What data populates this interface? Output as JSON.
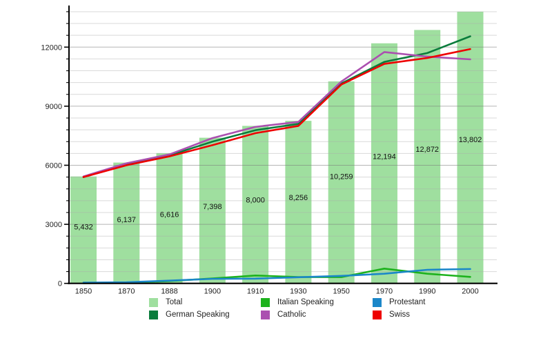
{
  "chart_data": {
    "type": "combo (bar + line)",
    "title": "",
    "categories": [
      "1850",
      "1870",
      "1888",
      "1900",
      "1910",
      "1930",
      "1950",
      "1970",
      "1990",
      "2000"
    ],
    "bars": {
      "name": "Total",
      "color": "#9fdf9f",
      "values": [
        5432,
        6137,
        6616,
        7398,
        8000,
        8256,
        10259,
        12194,
        12872,
        13802
      ],
      "labels": [
        "5,432",
        "6,137",
        "6,616",
        "7,398",
        "8,000",
        "8,256",
        "10,259",
        "12,194",
        "12,872",
        "13,802"
      ]
    },
    "series": [
      {
        "name": "German Speaking",
        "color": "#0a7c3c",
        "values": [
          5400,
          6050,
          6500,
          7200,
          7780,
          8100,
          10150,
          11250,
          11700,
          12550
        ]
      },
      {
        "name": "Italian Speaking",
        "color": "#1db21d",
        "values": [
          10,
          30,
          120,
          250,
          400,
          320,
          320,
          750,
          490,
          330
        ]
      },
      {
        "name": "Catholic",
        "color": "#ab4fb0",
        "values": [
          5430,
          6100,
          6550,
          7380,
          7950,
          8200,
          10250,
          11750,
          11520,
          11380
        ]
      },
      {
        "name": "Protestant",
        "color": "#1b87c9",
        "values": [
          40,
          60,
          140,
          230,
          240,
          310,
          380,
          490,
          690,
          730
        ]
      },
      {
        "name": "Swiss",
        "color": "#ee0000",
        "values": [
          5400,
          6000,
          6450,
          7020,
          7630,
          8000,
          10100,
          11150,
          11450,
          11900
        ]
      }
    ],
    "y_axis": {
      "min": 0,
      "max": 14100,
      "major_step": 3000,
      "minor_step": 600,
      "tick_labels": [
        "0",
        "3000",
        "6000",
        "9000",
        "12000"
      ]
    },
    "x_axis": {
      "labels": [
        "1850",
        "1870",
        "1888",
        "1900",
        "1910",
        "1930",
        "1950",
        "1970",
        "1990",
        "2000"
      ]
    },
    "grid": "horizontal minor gridlines every 600, major every 3000",
    "legend_position": "bottom"
  },
  "legend": {
    "items": [
      {
        "label": "Total",
        "color": "#9fdf9f"
      },
      {
        "label": "German Speaking",
        "color": "#0a7c3c"
      },
      {
        "label": "Italian Speaking",
        "color": "#1db21d"
      },
      {
        "label": "Catholic",
        "color": "#ab4fb0"
      },
      {
        "label": "Protestant",
        "color": "#1b87c9"
      },
      {
        "label": "Swiss",
        "color": "#ee0000"
      }
    ]
  }
}
